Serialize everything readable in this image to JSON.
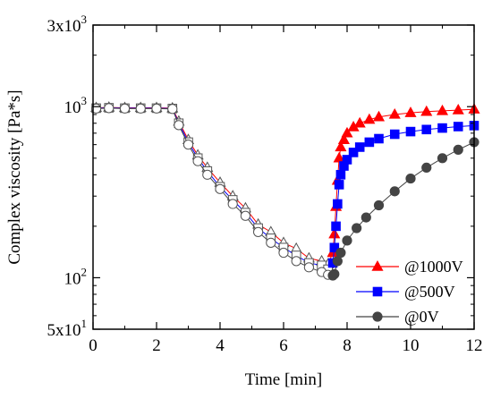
{
  "chart_data": {
    "type": "scatter",
    "xlabel": "Time [min]",
    "ylabel": "Complex viscosity [Pa*s]",
    "xlim": [
      0,
      12
    ],
    "ylim": [
      50,
      3000
    ],
    "yscale": "log",
    "grid": false,
    "legend_position": "bottom-right",
    "x_ticks": [
      {
        "value": 0,
        "label": "0"
      },
      {
        "value": 2,
        "label": "2"
      },
      {
        "value": 4,
        "label": "4"
      },
      {
        "value": 6,
        "label": "6"
      },
      {
        "value": 8,
        "label": "8"
      },
      {
        "value": 10,
        "label": "10"
      },
      {
        "value": 12,
        "label": "12"
      }
    ],
    "y_ticks": [
      {
        "value": 50,
        "base": "5x10",
        "exp": "1"
      },
      {
        "value": 100,
        "base": "10",
        "exp": "2"
      },
      {
        "value": 1000,
        "base": "10",
        "exp": "3"
      },
      {
        "value": 3000,
        "base": "3x10",
        "exp": "3"
      }
    ],
    "series": [
      {
        "name": "@1000V",
        "marker": "triangle",
        "color": "#ff0000",
        "x": [
          0.1,
          0.5,
          1.0,
          1.5,
          2.0,
          2.5,
          2.7,
          3.0,
          3.3,
          3.6,
          4.0,
          4.4,
          4.8,
          5.2,
          5.6,
          6.0,
          6.4,
          6.8,
          7.2,
          7.4,
          7.55,
          7.6,
          7.65,
          7.7,
          7.75,
          7.8,
          7.9,
          8.0,
          8.2,
          8.4,
          8.7,
          9.0,
          9.5,
          10.0,
          10.5,
          11.0,
          11.5,
          12.0
        ],
        "y": [
          985,
          990,
          985,
          985,
          985,
          980,
          820,
          640,
          520,
          440,
          360,
          300,
          255,
          205,
          185,
          160,
          148,
          130,
          125,
          120,
          140,
          180,
          260,
          370,
          500,
          580,
          640,
          700,
          760,
          800,
          840,
          870,
          900,
          920,
          935,
          945,
          955,
          965
        ]
      },
      {
        "name": "@500V",
        "marker": "square",
        "color": "#0000ff",
        "x": [
          0.1,
          0.5,
          1.0,
          1.5,
          2.0,
          2.5,
          2.7,
          3.0,
          3.3,
          3.6,
          4.0,
          4.4,
          4.8,
          5.2,
          5.6,
          6.0,
          6.4,
          6.8,
          7.2,
          7.4,
          7.55,
          7.6,
          7.65,
          7.7,
          7.75,
          7.8,
          7.9,
          8.0,
          8.2,
          8.4,
          8.7,
          9.0,
          9.5,
          10.0,
          10.5,
          11.0,
          11.5,
          12.0
        ],
        "y": [
          980,
          985,
          980,
          980,
          980,
          975,
          800,
          620,
          500,
          420,
          340,
          285,
          240,
          195,
          170,
          150,
          135,
          122,
          118,
          112,
          122,
          150,
          200,
          270,
          350,
          400,
          450,
          490,
          540,
          580,
          620,
          650,
          690,
          715,
          735,
          750,
          765,
          775
        ]
      },
      {
        "name": "@0V",
        "marker": "circle",
        "color": "#444444",
        "x": [
          0.1,
          0.5,
          1.0,
          1.5,
          2.0,
          2.5,
          2.7,
          3.0,
          3.3,
          3.6,
          4.0,
          4.4,
          4.8,
          5.2,
          5.6,
          6.0,
          6.4,
          6.8,
          7.2,
          7.4,
          7.55,
          7.6,
          7.7,
          7.8,
          8.0,
          8.3,
          8.6,
          9.0,
          9.5,
          10.0,
          10.5,
          11.0,
          11.5,
          12.0
        ],
        "y": [
          975,
          980,
          975,
          975,
          975,
          970,
          780,
          600,
          480,
          400,
          330,
          270,
          230,
          185,
          160,
          140,
          125,
          115,
          108,
          104,
          103,
          105,
          125,
          140,
          165,
          195,
          225,
          265,
          320,
          380,
          440,
          500,
          560,
          620
        ]
      }
    ]
  }
}
